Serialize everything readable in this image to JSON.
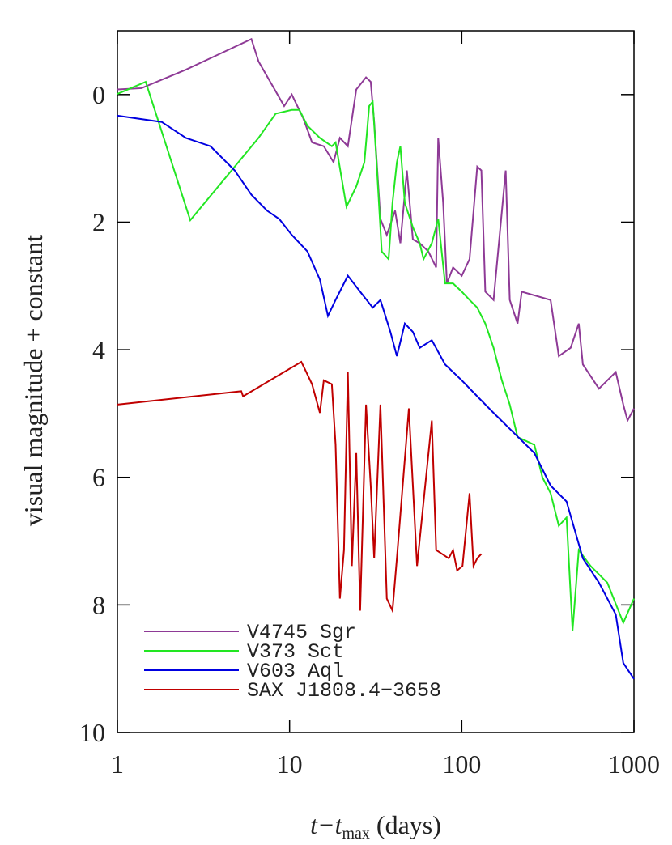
{
  "chart_data": {
    "type": "line",
    "x_label": [
      "t−t",
      "max",
      " (days)"
    ],
    "y_label": "visual magnitude + constant",
    "xscale": "log",
    "yinverted": true,
    "xlim": [
      1,
      1000
    ],
    "ylim": [
      10,
      -1
    ],
    "xticks": [
      1,
      10,
      100,
      1000
    ],
    "yticks": [
      0,
      2,
      4,
      6,
      8,
      10
    ],
    "legend": "lower left",
    "series": [
      {
        "name": "V4745 Sgr",
        "color": "#8e3a96",
        "x": [
          1,
          1.38,
          2.5,
          6,
          6.6,
          9.3,
          10.3,
          12,
          13.5,
          15.8,
          18,
          19.6,
          21.8,
          24.4,
          27.8,
          29.6,
          31,
          33.7,
          36.7,
          41,
          44,
          48,
          52,
          57,
          64,
          71,
          73,
          78,
          82,
          89,
          100,
          111,
          123,
          130,
          137,
          153,
          180,
          190,
          211,
          223,
          328,
          366,
          429,
          478,
          505,
          626,
          784,
          867,
          918,
          1000
        ],
        "values": [
          -0.08,
          -0.1,
          -0.39,
          -0.87,
          -0.52,
          0.18,
          0,
          0.37,
          0.75,
          0.81,
          1.06,
          0.68,
          0.81,
          -0.08,
          -0.27,
          -0.2,
          0.43,
          1.95,
          2.2,
          1.82,
          2.33,
          1.19,
          2.27,
          2.33,
          2.46,
          2.71,
          0.68,
          1.7,
          2.96,
          2.71,
          2.84,
          2.58,
          1.13,
          1.19,
          3.09,
          3.22,
          1.19,
          3.22,
          3.59,
          3.09,
          3.22,
          4.1,
          3.97,
          3.59,
          4.23,
          4.61,
          4.35,
          4.86,
          5.11,
          4.92
        ]
      },
      {
        "name": "V373 Sct",
        "color": "#22e622",
        "x": [
          1,
          1.46,
          2.65,
          6.6,
          8.3,
          10.3,
          11.4,
          12.7,
          15,
          17.6,
          18.5,
          21.4,
          24.4,
          27.2,
          29,
          30.4,
          32,
          34.3,
          37.6,
          39.6,
          42,
          44,
          46.7,
          52,
          57,
          60,
          67,
          73,
          80,
          89,
          100,
          111,
          123,
          137,
          153,
          171,
          190,
          211,
          264,
          294,
          328,
          366,
          406,
          440,
          478,
          560,
          700,
          867,
          1000
        ],
        "values": [
          -0.01,
          -0.2,
          1.97,
          0.68,
          0.3,
          0.24,
          0.24,
          0.49,
          0.68,
          0.81,
          0.75,
          1.76,
          1.44,
          1.06,
          0.18,
          0.11,
          1.06,
          2.46,
          2.58,
          1.7,
          1.06,
          0.81,
          1.7,
          2.08,
          2.33,
          2.58,
          2.33,
          1.95,
          2.96,
          2.96,
          3.09,
          3.22,
          3.34,
          3.59,
          3.97,
          4.48,
          4.86,
          5.37,
          5.49,
          6,
          6.25,
          6.76,
          6.63,
          8.4,
          7.14,
          7.39,
          7.65,
          8.28,
          7.9
        ]
      },
      {
        "name": "V603 Aql",
        "color": "#0000e0",
        "x": [
          1,
          1.81,
          2.5,
          3.47,
          4.8,
          6,
          7.4,
          8.7,
          10.3,
          12.7,
          15,
          16.7,
          18.5,
          21.8,
          25.7,
          30.4,
          33.7,
          38.5,
          42,
          46.7,
          52,
          57,
          67,
          80,
          100,
          123,
          153,
          190,
          264,
          328,
          406,
          505,
          626,
          784,
          867,
          1000
        ],
        "values": [
          0.33,
          0.43,
          0.68,
          0.81,
          1.19,
          1.57,
          1.82,
          1.95,
          2.2,
          2.46,
          2.9,
          3.47,
          3.22,
          2.84,
          3.09,
          3.34,
          3.22,
          3.72,
          4.1,
          3.59,
          3.72,
          3.97,
          3.85,
          4.23,
          4.48,
          4.73,
          4.99,
          5.24,
          5.62,
          6.13,
          6.38,
          7.27,
          7.65,
          8.15,
          8.91,
          9.16
        ]
      },
      {
        "name": "SAX J1808.4−3658",
        "color": "#c00000",
        "x": [
          1,
          5.24,
          5.37,
          11.7,
          12.2,
          13.5,
          15,
          15.8,
          17.6,
          18.5,
          19.6,
          20.7,
          21.8,
          23,
          24.4,
          25.7,
          27.8,
          29.6,
          31,
          33.7,
          36.7,
          39.6,
          42,
          49.3,
          55,
          67,
          71,
          84,
          89,
          94,
          101,
          111,
          117,
          123,
          130
        ],
        "values": [
          4.86,
          4.65,
          4.73,
          4.19,
          4.29,
          4.54,
          4.99,
          4.48,
          4.54,
          5.49,
          7.9,
          7.14,
          4.35,
          7.39,
          5.62,
          8.09,
          4.86,
          6.13,
          7.27,
          4.86,
          7.9,
          8.09,
          7.27,
          4.92,
          7.39,
          5.11,
          7.14,
          7.27,
          7.14,
          7.46,
          7.39,
          6.25,
          7.39,
          7.27,
          7.2
        ]
      }
    ]
  }
}
